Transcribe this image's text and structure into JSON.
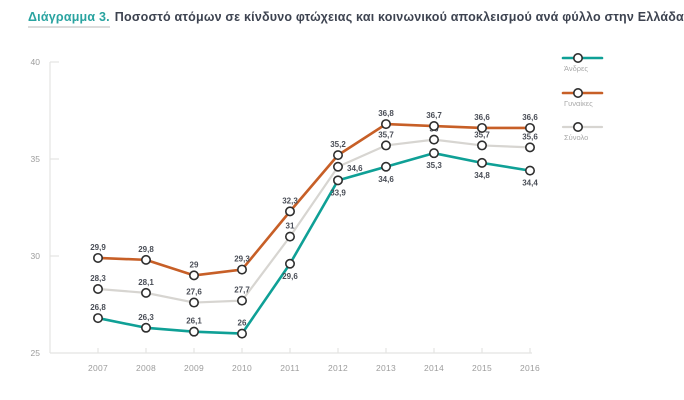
{
  "title": {
    "prefix": "Διάγραμμα 3.",
    "rest": "Ποσοστό ατόμων σε κίνδυνο φτώχειας και κοινωνικού αποκλεισμού ανά φύλλο στην Ελλάδα"
  },
  "colors": {
    "accent": "#29a3a0",
    "title_text": "#3d4350",
    "axis_line": "#e4e4e2",
    "tick_label": "#9c9c9c",
    "data_label": "#4a4e57",
    "marker_stroke": "#2e2e2e",
    "marker_fill": "#ffffff",
    "legend_label": "#a9a9a9"
  },
  "chart_data": {
    "type": "line",
    "x": [
      "2007",
      "2008",
      "2009",
      "2010",
      "2011",
      "2012",
      "2013",
      "2014",
      "2015",
      "2016"
    ],
    "series": [
      {
        "name": "Άνδρες",
        "color": "#0fa096",
        "values": [
          26.8,
          26.3,
          26.1,
          26,
          29.6,
          33.9,
          34.6,
          35.3,
          34.8,
          34.4
        ],
        "label_side": [
          "above",
          "above",
          "above",
          "above",
          "below",
          "below",
          "below",
          "below",
          "below",
          "below"
        ]
      },
      {
        "name": "Γυναίκες",
        "color": "#c75f27",
        "values": [
          29.9,
          29.8,
          29,
          29.3,
          32.3,
          35.2,
          36.8,
          36.7,
          36.6,
          36.6
        ],
        "label_side": [
          "above",
          "above",
          "above",
          "above",
          "above",
          "above",
          "above",
          "above",
          "above",
          "above"
        ]
      },
      {
        "name": "Σύνολο",
        "color": "#d7d5d1",
        "values": [
          28.3,
          28.1,
          27.6,
          27.7,
          31,
          34.6,
          35.7,
          36,
          35.7,
          35.6
        ],
        "label_side": [
          "above",
          "above",
          "above",
          "above",
          "above",
          "right",
          "above",
          "above",
          "above",
          "above"
        ]
      }
    ],
    "title": "Διάγραμμα 3. Ποσοστό ατόμων σε κίνδυνο φτώχειας και κοινωνικού αποκλεισμού ανά φύλλο στην Ελλάδα",
    "xlabel": "",
    "ylabel": "",
    "ylim": [
      25,
      40
    ],
    "yticks": [
      25,
      30,
      35,
      40
    ],
    "grid": false,
    "legend_position": "right",
    "decimal_separator": ","
  }
}
